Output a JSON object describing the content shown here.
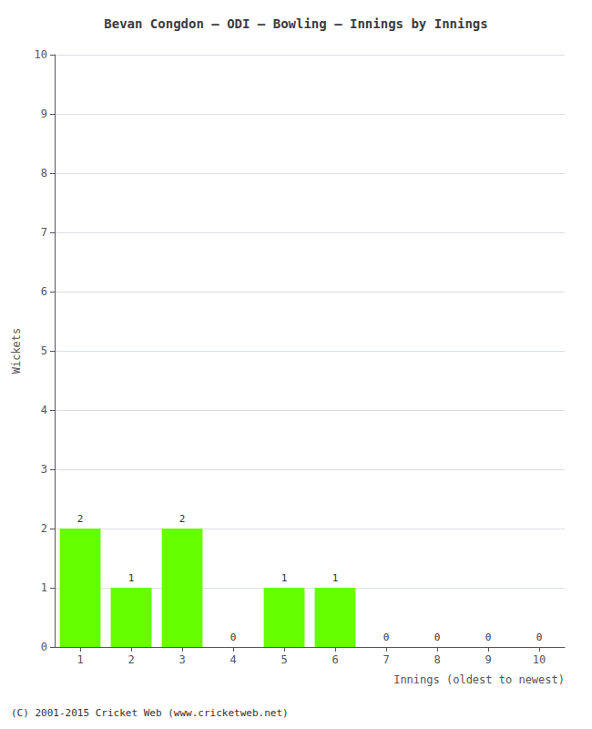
{
  "chart_data": {
    "type": "bar",
    "title": "Bevan Congdon – ODI – Bowling – Innings by Innings",
    "xlabel": "Innings (oldest to newest)",
    "ylabel": "Wickets",
    "footer": "(C) 2001-2015 Cricket Web (www.cricketweb.net)",
    "x": [
      1,
      2,
      3,
      4,
      5,
      6,
      7,
      8,
      9,
      10
    ],
    "values": [
      2,
      1,
      2,
      0,
      1,
      1,
      0,
      0,
      0,
      0
    ],
    "color": "#66ff00",
    "xlim": [
      0.5,
      10.5
    ],
    "xticks": [
      1,
      2,
      3,
      4,
      5,
      6,
      7,
      8,
      9,
      10
    ],
    "ylim": [
      0,
      10
    ],
    "yticks": [
      0,
      1,
      2,
      3,
      4,
      5,
      6,
      7,
      8,
      9,
      10
    ],
    "grid": true,
    "data_labels": true
  }
}
